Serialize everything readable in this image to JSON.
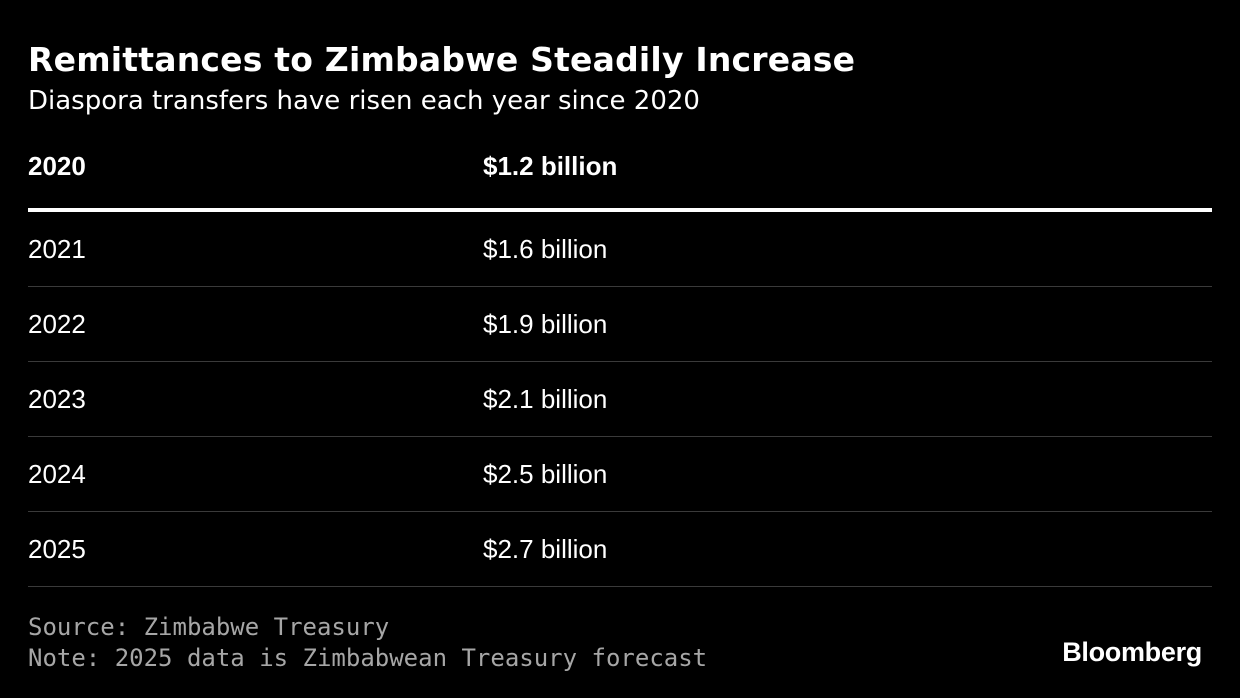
{
  "title": "Remittances to Zimbabwe Steadily Increase",
  "subtitle": "Diaspora transfers have risen each year since 2020",
  "chart_data": {
    "type": "table",
    "title": "Remittances to Zimbabwe Steadily Increase",
    "subtitle": "Diaspora transfers have risen each year since 2020",
    "columns": [
      "2020",
      "$1.2 billion"
    ],
    "rows": [
      [
        "2021",
        "$1.6 billion"
      ],
      [
        "2022",
        "$1.9 billion"
      ],
      [
        "2023",
        "$2.1 billion"
      ],
      [
        "2024",
        "$2.5 billion"
      ],
      [
        "2025",
        "$2.7 billion"
      ]
    ],
    "values_billion_usd": {
      "2020": 1.2,
      "2021": 1.6,
      "2022": 1.9,
      "2023": 2.1,
      "2024": 2.5,
      "2025": 2.7
    }
  },
  "footer": {
    "source": "Source: Zimbabwe Treasury",
    "note": "Note: 2025 data is Zimbabwean Treasury forecast"
  },
  "brand": {
    "name": "Bloomberg"
  },
  "colors": {
    "background": "#000000",
    "text": "#ffffff",
    "muted_text": "#a6a6a6",
    "divider": "#3a3a3a"
  }
}
